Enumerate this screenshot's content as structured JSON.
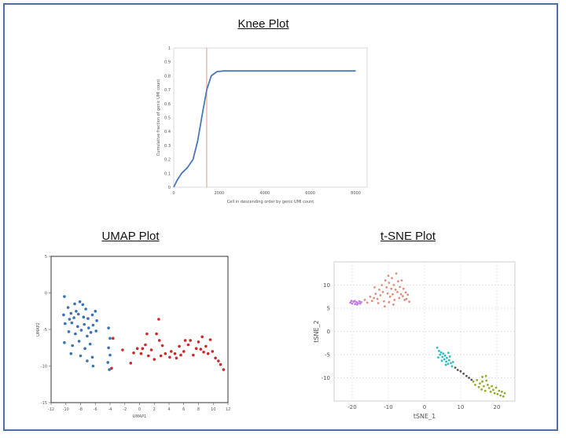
{
  "titles": {
    "knee": "Knee Plot",
    "umap": "UMAP Plot",
    "tsne": "t-SNE Plot"
  },
  "colors": {
    "frame": "#4e6fa3",
    "knee_line": "#4a78b8",
    "knee_marker": "#e3977f",
    "umap_blue": "#3a72b3",
    "umap_red": "#cc2a2a",
    "tsne_purple": "#c67de6",
    "tsne_salmon": "#e0907e",
    "tsne_cyan": "#2fbcc5",
    "tsne_green": "#8faf2a"
  },
  "chart_data": [
    {
      "id": "knee",
      "type": "line",
      "title": "Knee Plot",
      "xlabel": "Cell in descending order by genic UMI count",
      "ylabel": "Cumulative fraction of genic UMI count",
      "xlim": [
        0,
        8500
      ],
      "ylim": [
        0,
        1
      ],
      "xticks": [
        "0",
        "2000",
        "4000",
        "6000",
        "8000"
      ],
      "yticks": [
        "0",
        "0.1",
        "0.2",
        "0.3",
        "0.4",
        "0.5",
        "0.6",
        "0.7",
        "0.8",
        "0.9",
        "1"
      ],
      "series": [
        {
          "x": [
            0,
            150,
            350,
            600,
            850,
            1050,
            1250,
            1450,
            1650,
            1900,
            2200,
            3000,
            5000,
            8000
          ],
          "y": [
            0,
            0.05,
            0.1,
            0.14,
            0.2,
            0.33,
            0.52,
            0.7,
            0.8,
            0.83,
            0.835,
            0.835,
            0.835,
            0.835
          ]
        }
      ],
      "vline_x": 1450,
      "grid": false
    },
    {
      "id": "umap",
      "type": "scatter",
      "title": "UMAP Plot",
      "xlabel": "UMAP1",
      "ylabel": "UMAP2",
      "xlim": [
        -12,
        12
      ],
      "ylim": [
        -15,
        5
      ],
      "xticks": [
        "-12",
        "-10",
        "-8",
        "-6",
        "-4",
        "-2",
        "0",
        "2",
        "4",
        "6",
        "8",
        "10",
        "12"
      ],
      "yticks": [
        "5",
        "0",
        "-5",
        "-10",
        "-15"
      ],
      "series": [
        {
          "color": "#3a72b3",
          "points": [
            [
              -10.2,
              -0.5
            ],
            [
              -9.7,
              -2.0
            ],
            [
              -9.3,
              -2.8
            ],
            [
              -8.8,
              -1.5
            ],
            [
              -8.6,
              -2.5
            ],
            [
              -8.1,
              -1.2
            ],
            [
              -7.7,
              -1.6
            ],
            [
              -7.3,
              -2.2
            ],
            [
              -10.3,
              -3.0
            ],
            [
              -9.5,
              -3.6
            ],
            [
              -8.9,
              -3.4
            ],
            [
              -8.3,
              -2.9
            ],
            [
              -7.6,
              -3.3
            ],
            [
              -7.0,
              -3.5
            ],
            [
              -6.4,
              -3.0
            ],
            [
              -6.0,
              -2.5
            ],
            [
              -10.1,
              -4.2
            ],
            [
              -9.2,
              -4.1
            ],
            [
              -8.4,
              -4.6
            ],
            [
              -7.5,
              -4.3
            ],
            [
              -6.9,
              -4.8
            ],
            [
              -6.3,
              -4.4
            ],
            [
              -5.8,
              -3.8
            ],
            [
              -9.6,
              -5.3
            ],
            [
              -8.7,
              -5.6
            ],
            [
              -7.9,
              -5.1
            ],
            [
              -7.1,
              -5.9
            ],
            [
              -6.6,
              -5.4
            ],
            [
              -5.9,
              -5.2
            ],
            [
              -10.2,
              -6.8
            ],
            [
              -9.1,
              -7.2
            ],
            [
              -8.2,
              -6.6
            ],
            [
              -7.4,
              -7.6
            ],
            [
              -6.7,
              -7.0
            ],
            [
              -9.3,
              -8.3
            ],
            [
              -8.0,
              -8.6
            ],
            [
              -7.1,
              -9.3
            ],
            [
              -6.4,
              -8.8
            ],
            [
              -6.3,
              -10.0
            ],
            [
              -4.2,
              -4.8
            ],
            [
              -4.0,
              -6.2
            ],
            [
              -4.2,
              -7.5
            ],
            [
              -4.0,
              -8.5
            ],
            [
              -4.3,
              -9.5
            ],
            [
              -4.1,
              -10.5
            ]
          ]
        },
        {
          "color": "#cc2a2a",
          "points": [
            [
              -3.6,
              -6.2
            ],
            [
              -2.3,
              -7.8
            ],
            [
              -1.2,
              -9.6
            ],
            [
              -0.8,
              -8.2
            ],
            [
              -0.3,
              -7.6
            ],
            [
              0.2,
              -8.3
            ],
            [
              0.4,
              -7.6
            ],
            [
              0.8,
              -7.1
            ],
            [
              1.0,
              -5.6
            ],
            [
              1.2,
              -8.6
            ],
            [
              1.6,
              -7.8
            ],
            [
              2.0,
              -9.1
            ],
            [
              2.3,
              -5.6
            ],
            [
              2.6,
              -3.6
            ],
            [
              2.7,
              -6.5
            ],
            [
              2.9,
              -8.6
            ],
            [
              3.1,
              -7.2
            ],
            [
              3.5,
              -8.3
            ],
            [
              4.1,
              -8.8
            ],
            [
              4.3,
              -8.0
            ],
            [
              4.8,
              -8.3
            ],
            [
              5.0,
              -8.9
            ],
            [
              5.4,
              -7.3
            ],
            [
              5.6,
              -8.5
            ],
            [
              6.0,
              -8.0
            ],
            [
              6.2,
              -6.5
            ],
            [
              6.6,
              -7.1
            ],
            [
              6.9,
              -6.5
            ],
            [
              7.3,
              -8.5
            ],
            [
              7.7,
              -7.6
            ],
            [
              8.0,
              -6.7
            ],
            [
              8.3,
              -7.7
            ],
            [
              8.5,
              -6.0
            ],
            [
              8.7,
              -8.1
            ],
            [
              9.0,
              -7.3
            ],
            [
              9.3,
              -8.3
            ],
            [
              9.6,
              -6.4
            ],
            [
              9.9,
              -8.0
            ],
            [
              10.3,
              -8.9
            ],
            [
              10.7,
              -9.3
            ],
            [
              11.0,
              -9.8
            ],
            [
              11.4,
              -10.5
            ],
            [
              -3.8,
              -10.3
            ]
          ]
        }
      ],
      "grid": false
    },
    {
      "id": "tsne",
      "type": "scatter",
      "title": "t-SNE Plot",
      "xlabel": "tSNE_1",
      "ylabel": "tSNE_2",
      "xlim": [
        -25,
        25
      ],
      "ylim": [
        -15,
        15
      ],
      "xticks": [
        "-20",
        "-10",
        "0",
        "10",
        "20"
      ],
      "yticks": [
        "10",
        "5",
        "0",
        "-5",
        "-10"
      ],
      "series": [
        {
          "color": "#c67de6",
          "points": [
            [
              -20.5,
              6.2
            ],
            [
              -20.0,
              6.0
            ],
            [
              -19.6,
              6.4
            ],
            [
              -19.2,
              5.9
            ],
            [
              -18.8,
              6.3
            ],
            [
              -18.4,
              6.1
            ],
            [
              -18.0,
              6.5
            ],
            [
              -17.8,
              6.0
            ],
            [
              -20.2,
              6.6
            ],
            [
              -19.3,
              6.6
            ],
            [
              -18.6,
              5.8
            ],
            [
              -17.5,
              6.3
            ]
          ]
        },
        {
          "color": "#e0907e",
          "points": [
            [
              -16.5,
              6.8
            ],
            [
              -15.8,
              6.2
            ],
            [
              -15.0,
              7.5
            ],
            [
              -14.5,
              6.6
            ],
            [
              -14.0,
              7.2
            ],
            [
              -13.5,
              8.1
            ],
            [
              -13.0,
              7.0
            ],
            [
              -12.5,
              9.0
            ],
            [
              -12.2,
              7.8
            ],
            [
              -11.8,
              10.0
            ],
            [
              -11.5,
              8.5
            ],
            [
              -11.2,
              6.5
            ],
            [
              -10.8,
              11.0
            ],
            [
              -10.5,
              9.5
            ],
            [
              -10.2,
              8.2
            ],
            [
              -10.0,
              12.0
            ],
            [
              -9.8,
              10.5
            ],
            [
              -9.5,
              7.5
            ],
            [
              -9.2,
              9.2
            ],
            [
              -9.0,
              11.5
            ],
            [
              -8.8,
              8.0
            ],
            [
              -8.5,
              10.0
            ],
            [
              -8.3,
              6.8
            ],
            [
              -8.0,
              9.0
            ],
            [
              -7.8,
              12.5
            ],
            [
              -7.5,
              8.5
            ],
            [
              -7.3,
              10.8
            ],
            [
              -7.0,
              7.2
            ],
            [
              -6.8,
              9.6
            ],
            [
              -6.5,
              8.0
            ],
            [
              -6.3,
              11.0
            ],
            [
              -6.0,
              7.6
            ],
            [
              -5.8,
              9.2
            ],
            [
              -5.5,
              6.8
            ],
            [
              -5.2,
              8.4
            ],
            [
              -5.0,
              7.0
            ],
            [
              -4.6,
              7.9
            ],
            [
              -4.2,
              6.4
            ],
            [
              -12.8,
              6.1
            ],
            [
              -11.0,
              5.4
            ],
            [
              -9.8,
              6.3
            ],
            [
              -8.6,
              5.8
            ],
            [
              -13.8,
              9.5
            ]
          ]
        },
        {
          "color": "#2fbcc5",
          "points": [
            [
              3.5,
              -3.5
            ],
            [
              4.0,
              -4.2
            ],
            [
              4.3,
              -5.0
            ],
            [
              4.6,
              -4.5
            ],
            [
              5.0,
              -5.5
            ],
            [
              5.2,
              -4.8
            ],
            [
              5.5,
              -6.0
            ],
            [
              5.7,
              -5.2
            ],
            [
              6.0,
              -6.5
            ],
            [
              6.2,
              -5.7
            ],
            [
              6.5,
              -7.0
            ],
            [
              6.8,
              -6.2
            ],
            [
              7.0,
              -5.4
            ],
            [
              7.3,
              -6.8
            ],
            [
              7.6,
              -7.5
            ],
            [
              7.9,
              -6.6
            ],
            [
              4.8,
              -6.3
            ],
            [
              3.8,
              -5.6
            ],
            [
              5.9,
              -7.2
            ],
            [
              6.6,
              -4.6
            ]
          ]
        },
        {
          "color": "#555555",
          "points": [
            [
              8.5,
              -7.8
            ],
            [
              9.2,
              -8.3
            ],
            [
              10.0,
              -8.6
            ],
            [
              10.8,
              -9.1
            ],
            [
              11.6,
              -9.6
            ],
            [
              12.3,
              -10.0
            ],
            [
              13.0,
              -10.4
            ]
          ]
        },
        {
          "color": "#8faf2a",
          "points": [
            [
              13.5,
              -10.8
            ],
            [
              14.0,
              -11.5
            ],
            [
              14.5,
              -10.5
            ],
            [
              15.0,
              -12.0
            ],
            [
              15.3,
              -11.2
            ],
            [
              15.8,
              -12.5
            ],
            [
              16.0,
              -10.8
            ],
            [
              16.4,
              -11.8
            ],
            [
              16.8,
              -12.8
            ],
            [
              17.1,
              -10.6
            ],
            [
              17.5,
              -11.5
            ],
            [
              17.9,
              -12.2
            ],
            [
              18.3,
              -13.0
            ],
            [
              18.6,
              -11.8
            ],
            [
              19.0,
              -12.6
            ],
            [
              19.4,
              -13.3
            ],
            [
              19.8,
              -12.1
            ],
            [
              20.2,
              -13.5
            ],
            [
              20.6,
              -12.8
            ],
            [
              21.0,
              -13.8
            ],
            [
              21.4,
              -13.0
            ],
            [
              21.8,
              -14.0
            ],
            [
              22.2,
              -13.3
            ],
            [
              16.0,
              -9.8
            ],
            [
              17.0,
              -9.6
            ]
          ]
        }
      ],
      "grid": true
    }
  ]
}
